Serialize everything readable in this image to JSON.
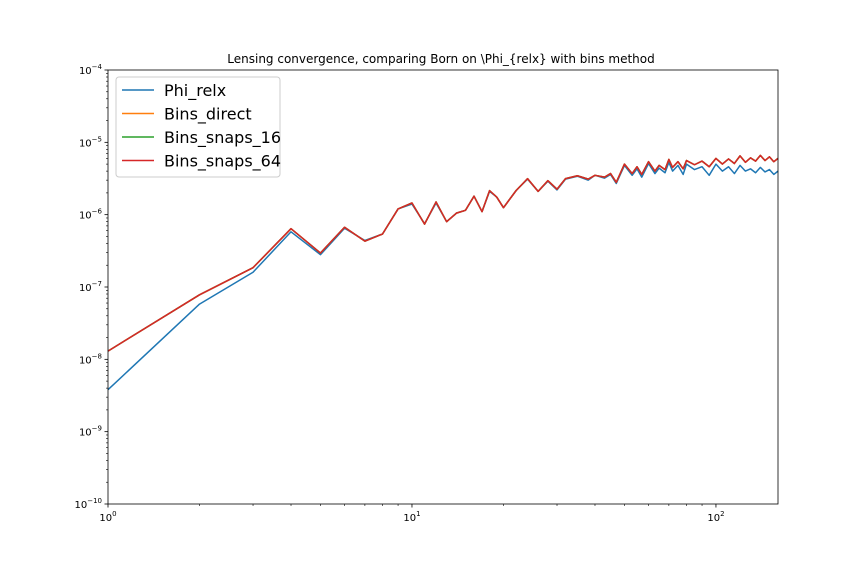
{
  "chart_data": {
    "type": "line",
    "title": "Lensing convergence, comparing Born on \\Phi_{relx} with bins method",
    "xlabel": "",
    "ylabel": "",
    "xscale": "log",
    "yscale": "log",
    "xlim": [
      1,
      160
    ],
    "ylim": [
      1e-10,
      0.0001
    ],
    "x_ticks": [
      {
        "value": 1,
        "base": "10",
        "exp": "0"
      },
      {
        "value": 10,
        "base": "10",
        "exp": "1"
      },
      {
        "value": 100,
        "base": "10",
        "exp": "2"
      }
    ],
    "y_ticks": [
      {
        "value": 1e-10,
        "base": "10",
        "exp": "−10"
      },
      {
        "value": 1e-09,
        "base": "10",
        "exp": "−9"
      },
      {
        "value": 1e-08,
        "base": "10",
        "exp": "−8"
      },
      {
        "value": 1e-07,
        "base": "10",
        "exp": "−7"
      },
      {
        "value": 1e-06,
        "base": "10",
        "exp": "−6"
      },
      {
        "value": 1e-05,
        "base": "10",
        "exp": "−5"
      },
      {
        "value": 0.0001,
        "base": "10",
        "exp": "−4"
      }
    ],
    "grid": false,
    "legend_position": "top-left",
    "x": [
      1,
      2,
      3,
      4,
      5,
      6,
      7,
      8,
      9,
      10,
      11,
      12,
      13,
      14,
      15,
      16,
      17,
      18,
      19,
      20,
      22,
      24,
      26,
      28,
      30,
      32,
      35,
      38,
      40,
      43,
      45,
      47,
      50,
      53,
      55,
      57,
      60,
      63,
      65,
      68,
      70,
      72,
      75,
      78,
      80,
      85,
      90,
      95,
      100,
      105,
      110,
      115,
      120,
      125,
      130,
      135,
      140,
      145,
      150,
      155,
      160
    ],
    "series": [
      {
        "name": "Phi_relx",
        "color": "#1f77b4",
        "values": [
          3.8e-09,
          5.8e-08,
          1.6e-07,
          5.8e-07,
          2.8e-07,
          6.5e-07,
          4.4e-07,
          5.4e-07,
          1.2e-06,
          1.4e-06,
          7.5e-07,
          1.45e-06,
          8e-07,
          1.05e-06,
          1.15e-06,
          1.8e-06,
          1.1e-06,
          2.1e-06,
          1.75e-06,
          1.25e-06,
          2.15e-06,
          3.1e-06,
          2.1e-06,
          2.9e-06,
          2.2e-06,
          3.1e-06,
          3.4e-06,
          3e-06,
          3.5e-06,
          3.2e-06,
          3.6e-06,
          2.7e-06,
          4.8e-06,
          3.5e-06,
          4.3e-06,
          3.3e-06,
          5.1e-06,
          3.7e-06,
          4.4e-06,
          3.8e-06,
          5.3e-06,
          4e-06,
          4.8e-06,
          3.6e-06,
          5e-06,
          4.2e-06,
          4.6e-06,
          3.5e-06,
          5e-06,
          4e-06,
          4.6e-06,
          3.7e-06,
          4.8e-06,
          4e-06,
          4.3e-06,
          3.8e-06,
          4.5e-06,
          3.9e-06,
          4.2e-06,
          3.6e-06,
          4e-06
        ]
      },
      {
        "name": "Bins_direct",
        "color": "#ff7f0e",
        "values": [
          1.3e-08,
          7.8e-08,
          1.85e-07,
          6.4e-07,
          2.95e-07,
          6.7e-07,
          4.3e-07,
          5.4e-07,
          1.2e-06,
          1.45e-06,
          7.4e-07,
          1.5e-06,
          8e-07,
          1.05e-06,
          1.15e-06,
          1.8e-06,
          1.1e-06,
          2.15e-06,
          1.75e-06,
          1.25e-06,
          2.15e-06,
          3.15e-06,
          2.1e-06,
          2.95e-06,
          2.25e-06,
          3.15e-06,
          3.45e-06,
          3.1e-06,
          3.5e-06,
          3.3e-06,
          3.7e-06,
          2.8e-06,
          5e-06,
          3.7e-06,
          4.6e-06,
          3.6e-06,
          5.4e-06,
          4e-06,
          4.8e-06,
          4.2e-06,
          5.8e-06,
          4.5e-06,
          5.4e-06,
          4.3e-06,
          5.6e-06,
          4.9e-06,
          5.5e-06,
          4.6e-06,
          6e-06,
          5e-06,
          5.9e-06,
          5.1e-06,
          6.5e-06,
          5.3e-06,
          6.1e-06,
          5.5e-06,
          6.6e-06,
          5.6e-06,
          6.3e-06,
          5.4e-06,
          6e-06
        ]
      },
      {
        "name": "Bins_snaps_16",
        "color": "#2ca02c",
        "values": [
          1.3e-08,
          7.8e-08,
          1.85e-07,
          6.4e-07,
          2.95e-07,
          6.7e-07,
          4.3e-07,
          5.4e-07,
          1.2e-06,
          1.45e-06,
          7.4e-07,
          1.5e-06,
          8e-07,
          1.05e-06,
          1.15e-06,
          1.8e-06,
          1.1e-06,
          2.15e-06,
          1.75e-06,
          1.25e-06,
          2.15e-06,
          3.15e-06,
          2.1e-06,
          2.95e-06,
          2.25e-06,
          3.15e-06,
          3.45e-06,
          3.1e-06,
          3.5e-06,
          3.3e-06,
          3.7e-06,
          2.8e-06,
          5e-06,
          3.7e-06,
          4.6e-06,
          3.6e-06,
          5.4e-06,
          4e-06,
          4.8e-06,
          4.2e-06,
          5.8e-06,
          4.5e-06,
          5.4e-06,
          4.3e-06,
          5.6e-06,
          4.9e-06,
          5.5e-06,
          4.6e-06,
          6e-06,
          5e-06,
          5.9e-06,
          5.1e-06,
          6.5e-06,
          5.3e-06,
          6.1e-06,
          5.5e-06,
          6.6e-06,
          5.6e-06,
          6.3e-06,
          5.4e-06,
          6e-06
        ]
      },
      {
        "name": "Bins_snaps_64",
        "color": "#d62728",
        "values": [
          1.3e-08,
          7.8e-08,
          1.85e-07,
          6.4e-07,
          2.95e-07,
          6.7e-07,
          4.3e-07,
          5.4e-07,
          1.2e-06,
          1.45e-06,
          7.4e-07,
          1.5e-06,
          8e-07,
          1.05e-06,
          1.15e-06,
          1.8e-06,
          1.1e-06,
          2.15e-06,
          1.75e-06,
          1.25e-06,
          2.15e-06,
          3.15e-06,
          2.1e-06,
          2.95e-06,
          2.25e-06,
          3.15e-06,
          3.45e-06,
          3.1e-06,
          3.5e-06,
          3.3e-06,
          3.7e-06,
          2.8e-06,
          5e-06,
          3.7e-06,
          4.6e-06,
          3.6e-06,
          5.4e-06,
          4e-06,
          4.8e-06,
          4.2e-06,
          5.8e-06,
          4.5e-06,
          5.4e-06,
          4.3e-06,
          5.6e-06,
          4.9e-06,
          5.5e-06,
          4.6e-06,
          6e-06,
          5e-06,
          5.9e-06,
          5.1e-06,
          6.5e-06,
          5.3e-06,
          6.1e-06,
          5.5e-06,
          6.6e-06,
          5.6e-06,
          6.3e-06,
          5.4e-06,
          6e-06
        ]
      }
    ]
  }
}
